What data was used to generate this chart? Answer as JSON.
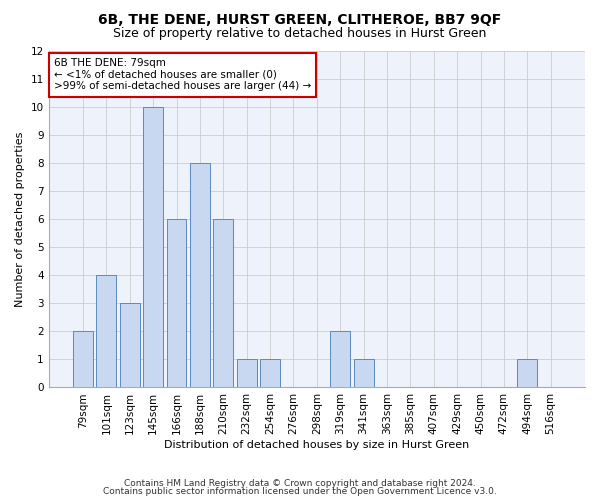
{
  "title": "6B, THE DENE, HURST GREEN, CLITHEROE, BB7 9QF",
  "subtitle": "Size of property relative to detached houses in Hurst Green",
  "xlabel": "Distribution of detached houses by size in Hurst Green",
  "ylabel": "Number of detached properties",
  "categories": [
    "79sqm",
    "101sqm",
    "123sqm",
    "145sqm",
    "166sqm",
    "188sqm",
    "210sqm",
    "232sqm",
    "254sqm",
    "276sqm",
    "298sqm",
    "319sqm",
    "341sqm",
    "363sqm",
    "385sqm",
    "407sqm",
    "429sqm",
    "450sqm",
    "472sqm",
    "494sqm",
    "516sqm"
  ],
  "values": [
    2,
    4,
    3,
    10,
    6,
    8,
    6,
    1,
    1,
    0,
    0,
    2,
    1,
    0,
    0,
    0,
    0,
    0,
    0,
    1,
    0
  ],
  "bar_color": "#c8d8f0",
  "bar_edge_color": "#5b8abf",
  "annotation_box_color": "#cc0000",
  "annotation_text": "6B THE DENE: 79sqm\n← <1% of detached houses are smaller (0)\n>99% of semi-detached houses are larger (44) →",
  "ylim": [
    0,
    12
  ],
  "yticks": [
    0,
    1,
    2,
    3,
    4,
    5,
    6,
    7,
    8,
    9,
    10,
    11,
    12
  ],
  "grid_color": "#cccccc",
  "background_color": "#eef2fb",
  "footnote1": "Contains HM Land Registry data © Crown copyright and database right 2024.",
  "footnote2": "Contains public sector information licensed under the Open Government Licence v3.0.",
  "title_fontsize": 10,
  "subtitle_fontsize": 9,
  "annotation_fontsize": 7.5,
  "axis_label_fontsize": 8,
  "tick_fontsize": 7.5,
  "footnote_fontsize": 6.5
}
